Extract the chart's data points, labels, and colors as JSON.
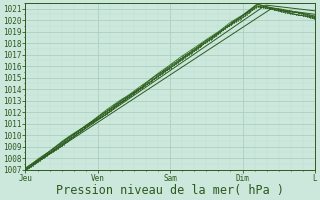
{
  "bg_color": "#cce8dc",
  "plot_bg_color": "#cce8dc",
  "grid_major_color": "#aacfc0",
  "grid_minor_color": "#bbddd0",
  "line_color_dark": "#2d5a1e",
  "line_color_mid": "#3a7a2a",
  "ylim": [
    1007,
    1021.5
  ],
  "ytick_min": 1007,
  "ytick_max": 1021,
  "xlabel": "Pression niveau de la mer( hPa )",
  "xtick_labels": [
    "Jeu",
    "Ven",
    "Sam",
    "Dim",
    "L"
  ],
  "xtick_positions": [
    0,
    0.25,
    0.5,
    0.75,
    1.0
  ],
  "tick_fontsize": 5.5,
  "xlabel_fontsize": 8.5
}
